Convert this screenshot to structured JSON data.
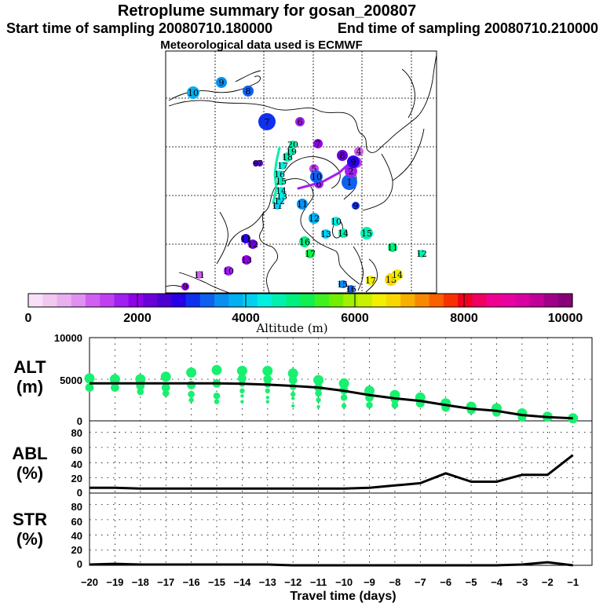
{
  "header": {
    "title": "Retroplume summary for gosan_200807",
    "start_label": "Start time of sampling 20080710.180000",
    "end_label": "End time of sampling 20080710.210000",
    "met_label": "Meteorological data used is ECMWF"
  },
  "colorbar": {
    "label": "Altitude (m)",
    "ticks": [
      "0",
      "2000",
      "4000",
      "6000",
      "8000",
      "10000"
    ],
    "colors": [
      "#f8e0f8",
      "#f0c8f0",
      "#e8b0f0",
      "#e090f0",
      "#d060f0",
      "#c040f0",
      "#a020f0",
      "#9000e8",
      "#6a00d8",
      "#4a00d0",
      "#2800e8",
      "#1030f0",
      "#1060f0",
      "#0890f0",
      "#00b0f0",
      "#00d0f0",
      "#00f0e0",
      "#00f0b0",
      "#00f080",
      "#10f050",
      "#40f020",
      "#70f000",
      "#a0f000",
      "#c8f000",
      "#f0f000",
      "#f8d800",
      "#f8b000",
      "#f88800",
      "#f86000",
      "#f83000",
      "#f00020",
      "#f00060",
      "#f00090",
      "#e800a0",
      "#d800a0",
      "#c00098",
      "#a00088",
      "#880078"
    ]
  },
  "map": {
    "markers": [
      {
        "n": "1",
        "alt": 3200
      },
      {
        "n": "2",
        "alt": 1600
      },
      {
        "n": "3",
        "alt": 1500
      },
      {
        "n": "4",
        "alt": 1100
      },
      {
        "n": "5",
        "alt": 1400
      },
      {
        "n": "6",
        "alt": 1800
      },
      {
        "n": "7",
        "alt": 2900
      },
      {
        "n": "8",
        "alt": 3400
      },
      {
        "n": "9",
        "alt": 3600
      },
      {
        "n": "10",
        "alt": 3800
      },
      {
        "n": "11",
        "alt": 4100
      },
      {
        "n": "12",
        "alt": 4200
      },
      {
        "n": "13",
        "alt": 4300
      },
      {
        "n": "14",
        "alt": 4400
      },
      {
        "n": "15",
        "alt": 4500
      },
      {
        "n": "16",
        "alt": 4400
      },
      {
        "n": "17",
        "alt": 4400
      },
      {
        "n": "18",
        "alt": 4500
      },
      {
        "n": "19",
        "alt": 4500
      },
      {
        "n": "20",
        "alt": 4600
      },
      {
        "n": "6",
        "alt": 1700
      },
      {
        "n": "7",
        "alt": 2100
      },
      {
        "n": "8",
        "alt": 2300
      },
      {
        "n": "9",
        "alt": 2800
      },
      {
        "n": "10",
        "alt": 3300
      },
      {
        "n": "11",
        "alt": 3600
      },
      {
        "n": "12",
        "alt": 3900
      },
      {
        "n": "13",
        "alt": 4200
      },
      {
        "n": "14",
        "alt": 4500
      },
      {
        "n": "15",
        "alt": 4700
      },
      {
        "n": "16",
        "alt": 4900
      },
      {
        "n": "17",
        "alt": 5100
      },
      {
        "n": "7",
        "alt": 2200
      },
      {
        "n": "9",
        "alt": 2600
      },
      {
        "n": "8",
        "alt": 2400
      },
      {
        "n": "9",
        "alt": 3100
      },
      {
        "n": "10",
        "alt": 4300
      },
      {
        "n": "11",
        "alt": 4800
      },
      {
        "n": "12",
        "alt": 4700
      },
      {
        "n": "13",
        "alt": 6700
      },
      {
        "n": "14",
        "alt": 6500
      },
      {
        "n": "15",
        "alt": 3500
      },
      {
        "n": "16",
        "alt": 3300
      },
      {
        "n": "17",
        "alt": 6400
      },
      {
        "n": "11",
        "alt": 2700
      },
      {
        "n": "12",
        "alt": 2200
      },
      {
        "n": "13",
        "alt": 2000
      },
      {
        "n": "10",
        "alt": 1600
      },
      {
        "n": "11",
        "alt": 1200
      },
      {
        "n": "9",
        "alt": 2100
      }
    ]
  },
  "panels": {
    "alt": {
      "label1": "ALT",
      "label2": "(m)",
      "yticks": [
        "0",
        "5000",
        "10000"
      ]
    },
    "abl": {
      "label1": "ABL",
      "label2": "(%)",
      "yticks": [
        "0",
        "20",
        "40",
        "60",
        "80"
      ]
    },
    "str": {
      "label1": "STR",
      "label2": "(%)",
      "yticks": [
        "0",
        "20",
        "40",
        "60",
        "80"
      ]
    }
  },
  "chart_data": {
    "type": "line",
    "xlabel": "Travel time (days)",
    "x": [
      -20,
      -19,
      -18,
      -17,
      -16,
      -15,
      -14,
      -13,
      -12,
      -11,
      -10,
      -9,
      -8,
      -7,
      -6,
      -5,
      -4,
      -3,
      -2,
      -1
    ],
    "xtick_labels": [
      "−20",
      "−19",
      "−18",
      "−17",
      "−16",
      "−15",
      "−14",
      "−13",
      "−12",
      "−11",
      "−10",
      "−9",
      "−8",
      "−7",
      "−6",
      "−5",
      "−4",
      "−3",
      "−2",
      "−1"
    ],
    "xlim": [
      -20,
      -0.25
    ],
    "panels": [
      {
        "name": "ALT",
        "ylabel": "(m)",
        "ylim": [
          0,
          10000
        ],
        "series": [
          {
            "name": "mean altitude",
            "values": [
              4500,
              4500,
              4500,
              4500,
              4500,
              4500,
              4450,
              4350,
              4200,
              4000,
              3600,
              3100,
              2700,
              2400,
              1900,
              1450,
              1200,
              700,
              450,
              300
            ]
          }
        ],
        "scatter": [
          {
            "x": -20,
            "values": [
              5100,
              4000
            ]
          },
          {
            "x": -19,
            "values": [
              5000,
              4000
            ]
          },
          {
            "x": -18,
            "values": [
              5000,
              4200,
              3500
            ]
          },
          {
            "x": -17,
            "values": [
              5300,
              4000,
              3300
            ]
          },
          {
            "x": -16,
            "values": [
              5800,
              4300,
              3200,
              2500
            ]
          },
          {
            "x": -15,
            "values": [
              6100,
              4500,
              3000,
              2300
            ]
          },
          {
            "x": -14,
            "values": [
              6000,
              5100,
              4500,
              3600,
              3000,
              2300
            ]
          },
          {
            "x": -13,
            "values": [
              6000,
              5000,
              4400,
              3600,
              2800,
              2300
            ]
          },
          {
            "x": -12,
            "values": [
              5700,
              4900,
              4100,
              3200,
              2700,
              1800
            ]
          },
          {
            "x": -11,
            "values": [
              4900,
              4000,
              3300,
              2500,
              1700
            ]
          },
          {
            "x": -10,
            "values": [
              4500,
              3700,
              2800,
              1800
            ]
          },
          {
            "x": -9,
            "values": [
              3600,
              2800,
              1900
            ]
          },
          {
            "x": -8,
            "values": [
              3100,
              2600,
              1900
            ]
          },
          {
            "x": -7,
            "values": [
              2800,
              2100
            ]
          },
          {
            "x": -6,
            "values": [
              2100,
              1600
            ]
          },
          {
            "x": -5,
            "values": [
              1700,
              1300
            ]
          },
          {
            "x": -4,
            "values": [
              1500,
              1000
            ]
          },
          {
            "x": -3,
            "values": [
              900,
              400
            ]
          },
          {
            "x": -2,
            "values": [
              500
            ]
          },
          {
            "x": -1,
            "values": [
              300
            ]
          }
        ]
      },
      {
        "name": "ABL",
        "ylabel": "(%)",
        "ylim": [
          0,
          95
        ],
        "series": [
          {
            "name": "ABL fraction",
            "values": [
              7,
              7,
              6,
              6,
              6,
              6,
              6,
              6,
              6,
              6,
              6,
              7,
              10,
              13,
              26,
              15,
              15,
              24,
              24,
              50
            ]
          }
        ]
      },
      {
        "name": "STR",
        "ylabel": "(%)",
        "ylim": [
          0,
          95
        ],
        "series": [
          {
            "name": "stratospheric fraction",
            "values": [
              1,
              2,
              1,
              1,
              1,
              1,
              1,
              1,
              0,
              0,
              0,
              0,
              0,
              0,
              0,
              0,
              0,
              1,
              4,
              0
            ]
          }
        ]
      }
    ]
  }
}
